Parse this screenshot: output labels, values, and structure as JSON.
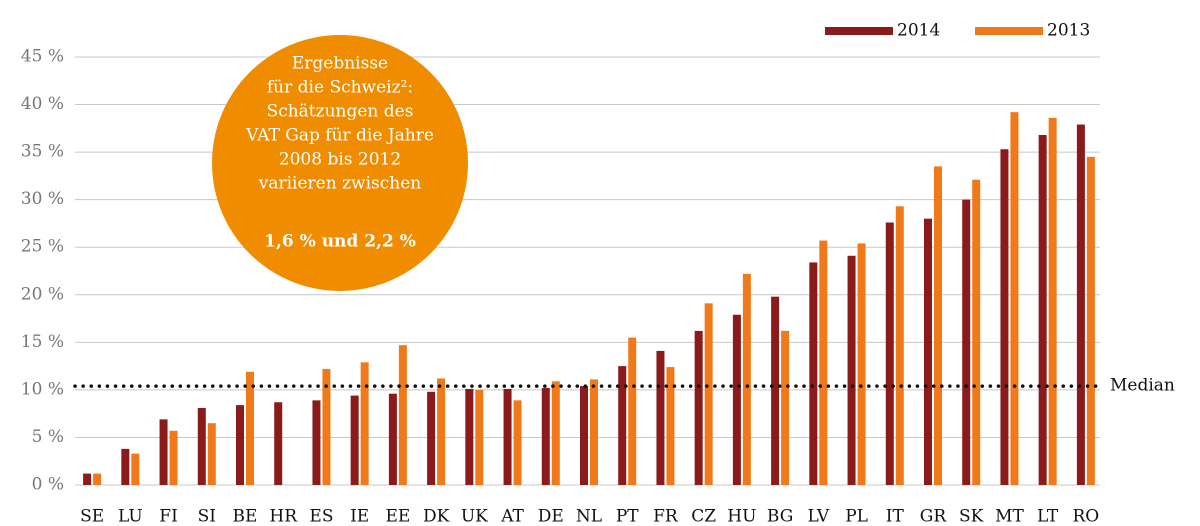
{
  "chart_data": {
    "type": "bar",
    "categories": [
      "SE",
      "LU",
      "FI",
      "SI",
      "BE",
      "HR",
      "ES",
      "IE",
      "EE",
      "DK",
      "UK",
      "AT",
      "DE",
      "NL",
      "PT",
      "FR",
      "CZ",
      "HU",
      "BG",
      "LV",
      "PL",
      "IT",
      "GR",
      "SK",
      "MT",
      "LT",
      "RO"
    ],
    "series": [
      {
        "name": "2014",
        "color": "#8b1a1a",
        "values": [
          1.2,
          3.8,
          6.9,
          8.1,
          8.4,
          8.7,
          8.9,
          9.4,
          9.6,
          9.8,
          10.1,
          10.1,
          10.2,
          10.4,
          12.5,
          14.1,
          16.2,
          17.9,
          19.8,
          23.4,
          24.1,
          27.6,
          28.0,
          30.0,
          35.3,
          36.8,
          37.9
        ]
      },
      {
        "name": "2013",
        "color": "#f07a1a",
        "values": [
          1.2,
          3.3,
          5.7,
          6.5,
          11.9,
          null,
          12.2,
          12.9,
          14.7,
          11.2,
          10.0,
          8.9,
          10.9,
          11.1,
          15.5,
          12.4,
          19.1,
          22.2,
          16.2,
          25.7,
          25.4,
          29.3,
          33.5,
          32.1,
          39.2,
          38.6,
          34.5
        ]
      }
    ],
    "ylim": [
      0,
      45
    ],
    "yticks": [
      {
        "value": 0,
        "label": "0 %"
      },
      {
        "value": 5,
        "label": "5 %"
      },
      {
        "value": 10,
        "label": "10 %"
      },
      {
        "value": 15,
        "label": "15 %"
      },
      {
        "value": 20,
        "label": "20 %"
      },
      {
        "value": 25,
        "label": "25 %"
      },
      {
        "value": 30,
        "label": "30 %"
      },
      {
        "value": 35,
        "label": "35 %"
      },
      {
        "value": 40,
        "label": "40 %"
      },
      {
        "value": 45,
        "label": "45 %"
      }
    ],
    "grid": true,
    "legend": "top-right",
    "median": {
      "label": "Median",
      "value": 10.4
    },
    "annotation": {
      "lines": [
        "Ergebnisse",
        "für die Schweiz²:",
        "Schätzungen des",
        "VAT Gap für die Jahre",
        "2008 bis 2012",
        "variieren zwischen"
      ],
      "highlight": "1,6 % und 2,2 %",
      "color": "#ef8c00"
    }
  }
}
